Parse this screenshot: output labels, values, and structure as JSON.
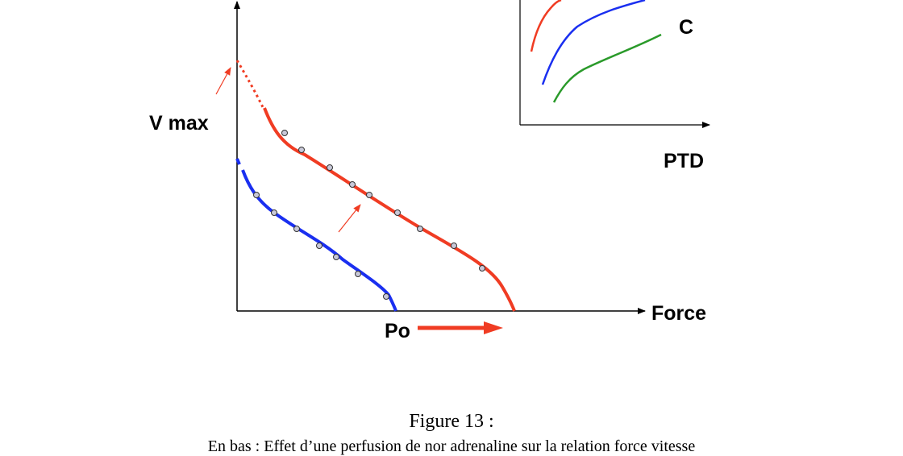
{
  "labels": {
    "vmax": "V max",
    "force": "Force",
    "po": "Po",
    "inset_curve": "C",
    "inset_xlabel": "PTD"
  },
  "colors": {
    "red": "#f03c23",
    "blue": "#1a2ff0",
    "green": "#2a9a2a",
    "axis": "#000000"
  },
  "caption": {
    "title": "Figure 13 :",
    "text": "En bas : Effet d’une perfusion de nor adrenaline sur la relation force vitesse"
  }
}
